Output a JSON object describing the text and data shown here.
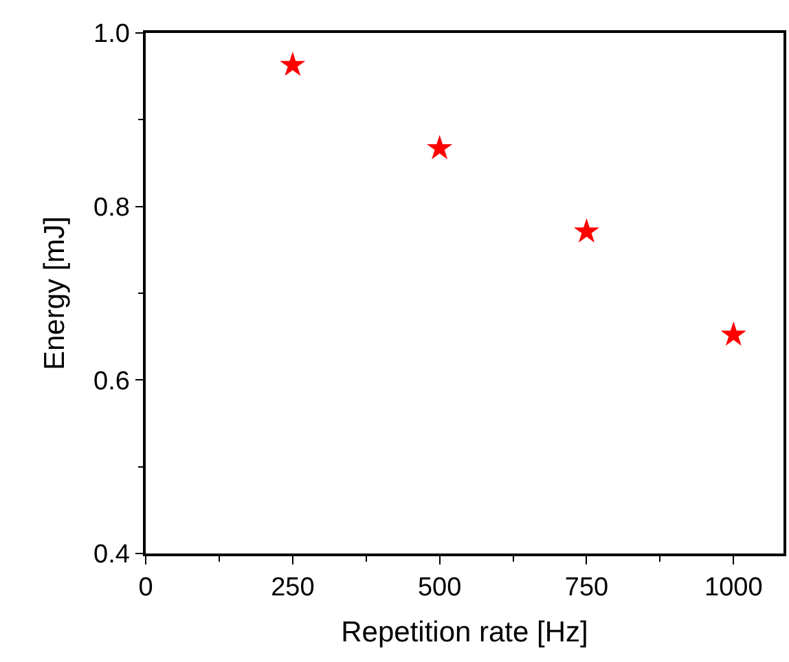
{
  "chart_data": {
    "type": "scatter",
    "xlabel": "Repetition rate [Hz]",
    "ylabel": "Energy [mJ]",
    "x": [
      250,
      500,
      750,
      1000
    ],
    "series": [
      {
        "color": "#ff0000",
        "values": [
          0.963,
          0.867,
          0.771,
          0.652
        ]
      }
    ],
    "marker": "star",
    "xlim": [
      0,
      1085
    ],
    "ylim": [
      0.4,
      1.0
    ],
    "xticks": [
      0,
      250,
      500,
      750,
      1000
    ],
    "yticks": [
      {
        "value": 0.4,
        "label": "0.4"
      },
      {
        "value": 0.6,
        "label": "0.6"
      },
      {
        "value": 0.8,
        "label": "0.8"
      },
      {
        "value": 1.0,
        "label": "1.0"
      }
    ],
    "legend": false
  }
}
